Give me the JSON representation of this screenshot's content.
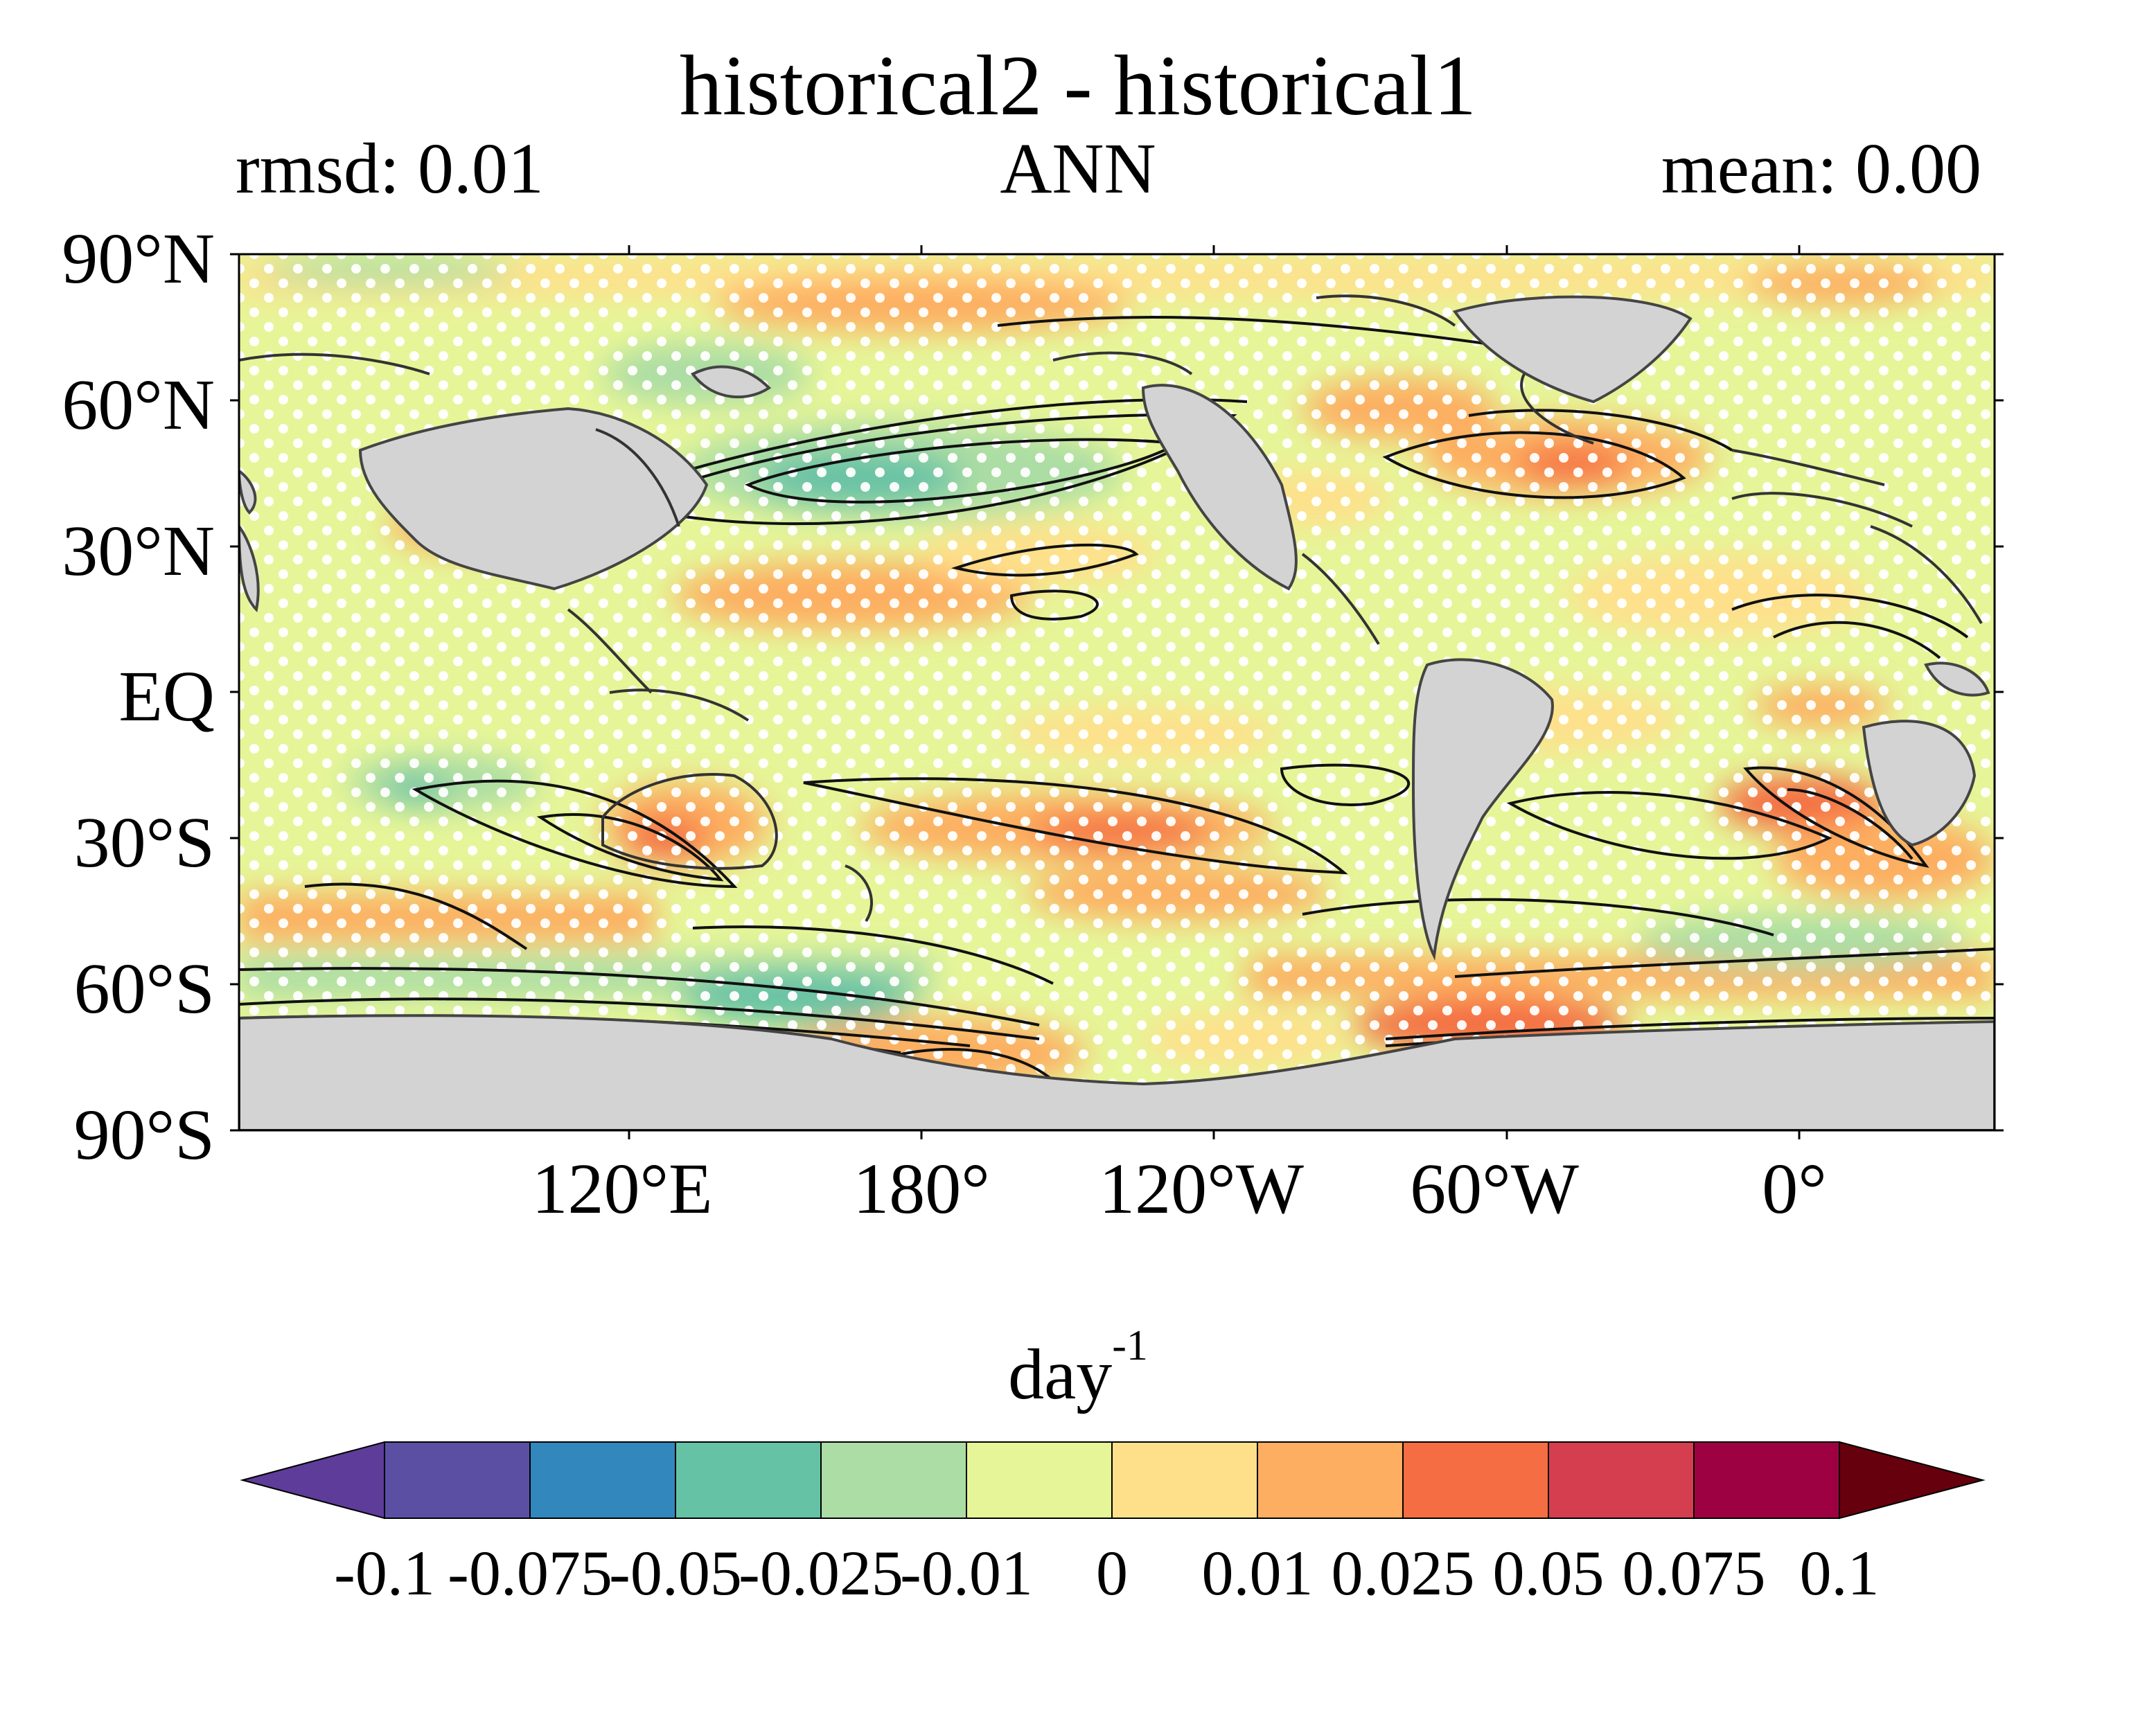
{
  "title": "historical2 - historical1",
  "rmsd_label": "rmsd: 0.01",
  "season_label": "ANN",
  "mean_label": "mean: 0.00",
  "map": {
    "projection": "equirectangular",
    "central_longitude": 60,
    "lat_ticks": [
      "90°N",
      "60°N",
      "30°N",
      "EQ",
      "30°S",
      "60°S",
      "90°S"
    ],
    "lon_ticks": [
      "120°E",
      "180°",
      "120°W",
      "60°W",
      "0°"
    ],
    "land_color": "#d3d3d3",
    "stippling": "white dots mark regions not statistically significant",
    "contours": "black isolines of the baseline field"
  },
  "colorbar": {
    "unit": "day",
    "unit_exponent": "-1",
    "extend": "both",
    "tick_labels": [
      "-0.1",
      "-0.075",
      "-0.05",
      "-0.025",
      "-0.01",
      "0",
      "0.01",
      "0.025",
      "0.05",
      "0.075",
      "0.1"
    ],
    "colors": [
      "#5e3c99",
      "#5b4fa3",
      "#3288bd",
      "#66c2a5",
      "#abdda4",
      "#e6f598",
      "#fee08b",
      "#fdae61",
      "#f46d43",
      "#d53e4f",
      "#9e0142",
      "#67000d"
    ]
  }
}
